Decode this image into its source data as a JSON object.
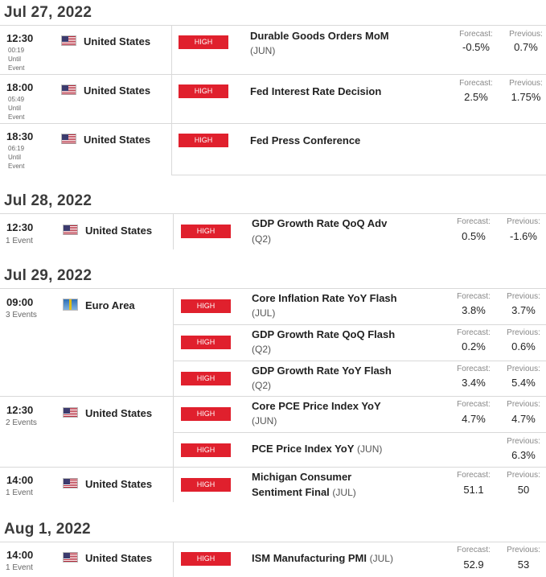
{
  "dates": [
    "Jul 27, 2022",
    "Jul 28, 2022",
    "Jul 29, 2022",
    "Aug 1, 2022"
  ],
  "labels": {
    "forecast": "Forecast:",
    "previous": "Previous:",
    "impact": "HIGH"
  },
  "groups": [
    {
      "time": "12:30",
      "countdown": "00:19",
      "until": "Until",
      "event_word": "Event",
      "country": "United States",
      "event": "Durable Goods Orders MoM",
      "period": "(JUN)",
      "forecast": "-0.5%",
      "previous": "0.7%"
    },
    {
      "time": "18:00",
      "countdown": "05:49",
      "until": "Until",
      "event_word": "Event",
      "country": "United States",
      "event": "Fed Interest Rate Decision",
      "forecast": "2.5%",
      "previous": "1.75%"
    },
    {
      "time": "18:30",
      "countdown": "06:19",
      "until": "Until",
      "event_word": "Event",
      "country": "United States",
      "event": "Fed Press Conference"
    },
    {
      "time": "12:30",
      "count": "1 Event",
      "country": "United States",
      "event": "GDP Growth Rate QoQ Adv",
      "period": "(Q2)",
      "forecast": "0.5%",
      "previous": "-1.6%"
    },
    {
      "time": "09:00",
      "count": "3 Events",
      "country": "Euro Area",
      "events": [
        {
          "event": "Core Inflation Rate YoY Flash",
          "period": "(JUL)",
          "forecast": "3.8%",
          "previous": "3.7%"
        },
        {
          "event": "GDP Growth Rate QoQ Flash",
          "period": "(Q2)",
          "forecast": "0.2%",
          "previous": "0.6%"
        },
        {
          "event": "GDP Growth Rate YoY Flash",
          "period": "(Q2)",
          "forecast": "3.4%",
          "previous": "5.4%"
        }
      ]
    },
    {
      "time": "12:30",
      "count": "2 Events",
      "country": "United States",
      "events": [
        {
          "event": "Core PCE Price Index YoY",
          "period": "(JUN)",
          "forecast": "4.7%",
          "previous": "4.7%"
        },
        {
          "event": "PCE Price Index YoY",
          "period": "(JUN)",
          "previous": "6.3%"
        }
      ]
    },
    {
      "time": "14:00",
      "count": "1 Event",
      "country": "United States",
      "event_line1": "Michigan Consumer",
      "event_line2": "Sentiment Final",
      "period": "(JUL)",
      "forecast": "51.1",
      "previous": "50"
    },
    {
      "time": "14:00",
      "count": "1 Event",
      "country": "United States",
      "event": "ISM Manufacturing PMI",
      "period": "(JUL)",
      "forecast": "52.9",
      "previous": "53"
    }
  ],
  "colors": {
    "impact_high": "#e0202d"
  }
}
